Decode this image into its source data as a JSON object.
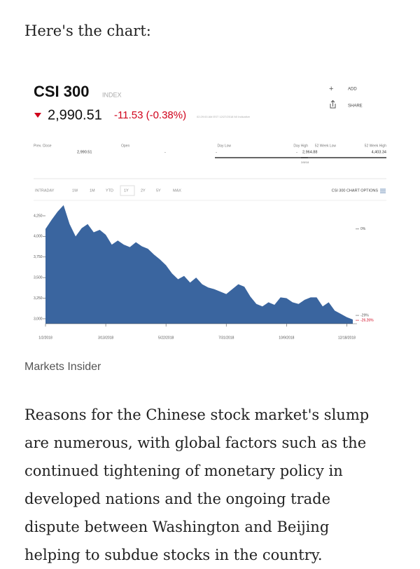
{
  "intro": "Here's the chart:",
  "quote": {
    "name": "CSI 300",
    "kind": "INDEX",
    "price": "2,990.51",
    "change": "-11.53 (-0.38%)",
    "timestamp": "02:29:00 AM EST 12/27/2018 MI Indicative",
    "actions": [
      "ADD",
      "SHARE"
    ],
    "stats": [
      {
        "label": "Prev. Close",
        "value": "2,990.51"
      },
      {
        "label": "Open",
        "value": "-"
      },
      {
        "label": "Day Low",
        "value": "-"
      },
      {
        "label": "Day High",
        "value": "-"
      },
      {
        "label": "52 Week Low",
        "value": "2,964.88"
      },
      {
        "label": "52 Week High",
        "value": "4,403.34"
      }
    ],
    "range_note": "2/8/18"
  },
  "tabs": [
    "INTRADAY",
    "1W",
    "1M",
    "YTD",
    "1Y",
    "2Y",
    "5Y",
    "MAX"
  ],
  "active_tab": "1Y",
  "options": "CSI 300 CHART OPTIONS",
  "chart_data": {
    "type": "area",
    "color": "#3a659f",
    "values": [
      4090,
      4200,
      4300,
      4380,
      4150,
      4000,
      4100,
      4150,
      4050,
      4080,
      4020,
      3900,
      3950,
      3900,
      3870,
      3930,
      3880,
      3850,
      3780,
      3720,
      3650,
      3550,
      3480,
      3520,
      3440,
      3500,
      3420,
      3380,
      3360,
      3330,
      3300,
      3360,
      3420,
      3390,
      3270,
      3180,
      3150,
      3200,
      3170,
      3260,
      3250,
      3200,
      3180,
      3230,
      3260,
      3260,
      3150,
      3200,
      3100,
      3060,
      3020,
      2990.51
    ],
    "xlim": [
      0,
      51
    ],
    "xticks": [
      {
        "value": 0,
        "label": "1/2/2018"
      },
      {
        "value": 10,
        "label": "3/13/2018"
      },
      {
        "value": 20,
        "label": "5/22/2018"
      },
      {
        "value": 30,
        "label": "7/31/2018"
      },
      {
        "value": 40,
        "label": "10/9/2018"
      },
      {
        "value": 50,
        "label": "12/18/2018"
      }
    ],
    "ylim": [
      2940,
      4403
    ],
    "yticks": [
      {
        "value": 3000,
        "label": "3,000"
      },
      {
        "value": 3250,
        "label": "3,250"
      },
      {
        "value": 3500,
        "label": "3,500"
      },
      {
        "value": 3750,
        "label": "3,750"
      },
      {
        "value": 4000,
        "label": "4,000"
      },
      {
        "value": 4250,
        "label": "4,250"
      }
    ],
    "annotations": [
      "0%",
      "-29%",
      "-26.26%"
    ]
  },
  "credit": "Markets Insider",
  "paragraph": [
    "Reasons for the Chinese stock market's slump",
    "are numerous, with global factors such as the",
    "continued tightening of monetary policy in",
    "developed nations and the ongoing trade",
    "dispute between Washington and Beijing",
    "helping to subdue stocks in the country."
  ]
}
